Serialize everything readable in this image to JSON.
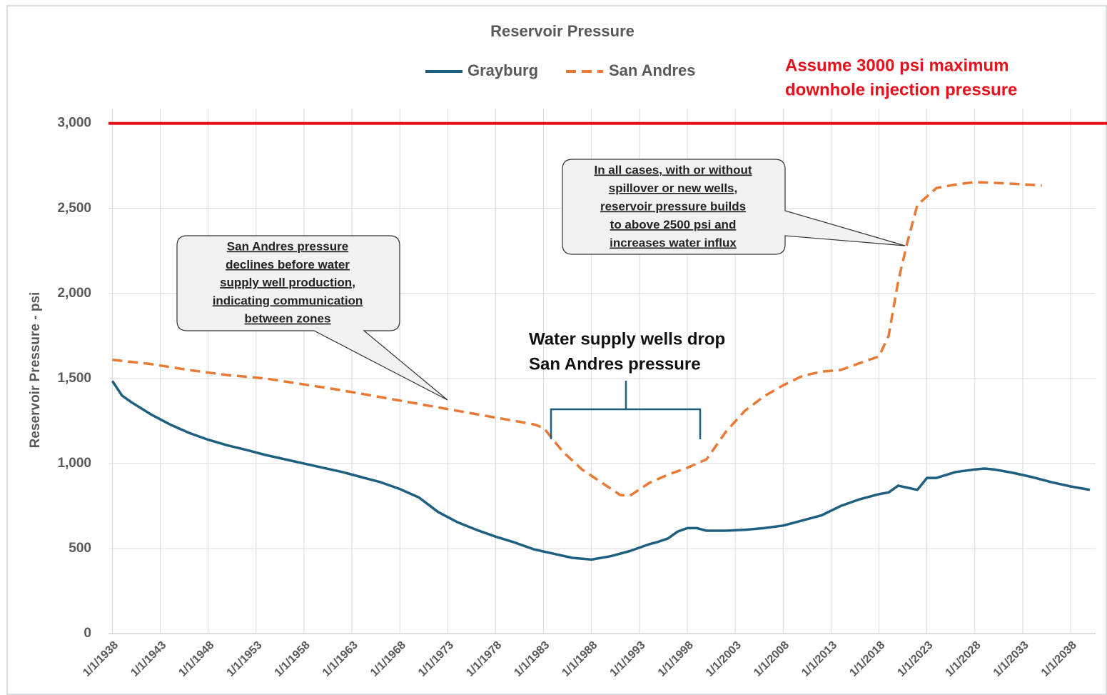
{
  "chart_data": {
    "type": "line",
    "title": "Reservoir Pressure",
    "y_label": "Reservoir Pressure - psi",
    "xlim": [
      1937.6,
      2040.6
    ],
    "ylim": [
      0,
      3150
    ],
    "xticks": [
      {
        "value": 1938,
        "label": "1/1/1938"
      },
      {
        "value": 1943,
        "label": "1/1/1943"
      },
      {
        "value": 1948,
        "label": "1/1/1948"
      },
      {
        "value": 1953,
        "label": "1/1/1953"
      },
      {
        "value": 1958,
        "label": "1/1/1958"
      },
      {
        "value": 1963,
        "label": "1/1/1963"
      },
      {
        "value": 1968,
        "label": "1/1/1968"
      },
      {
        "value": 1973,
        "label": "1/1/1973"
      },
      {
        "value": 1978,
        "label": "1/1/1978"
      },
      {
        "value": 1983,
        "label": "1/1/1983"
      },
      {
        "value": 1988,
        "label": "1/1/1988"
      },
      {
        "value": 1993,
        "label": "1/1/1993"
      },
      {
        "value": 1998,
        "label": "1/1/1998"
      },
      {
        "value": 2003,
        "label": "1/1/2003"
      },
      {
        "value": 2008,
        "label": "1/1/2008"
      },
      {
        "value": 2013,
        "label": "1/1/2013"
      },
      {
        "value": 2018,
        "label": "1/1/2018"
      },
      {
        "value": 2023,
        "label": "1/1/2023"
      },
      {
        "value": 2028,
        "label": "1/1/2028"
      },
      {
        "value": 2033,
        "label": "1/1/2033"
      },
      {
        "value": 2038,
        "label": "1/1/2038"
      }
    ],
    "yticks": [
      0,
      500,
      {
        "value": 1000,
        "label": "1,000"
      },
      {
        "value": 1500,
        "label": "1,500"
      },
      {
        "value": 2000,
        "label": "2,000"
      },
      {
        "value": 2500,
        "label": "2,500"
      },
      {
        "value": 3000,
        "label": "3,000"
      }
    ],
    "grid": true,
    "legend": "top",
    "series": [
      {
        "name": "Grayburg",
        "color": "#1f5f80",
        "dash": "solid",
        "x": [
          1938,
          1939,
          1940,
          1942,
          1944,
          1946,
          1948,
          1950,
          1952,
          1954,
          1956,
          1958,
          1960,
          1962,
          1964,
          1966,
          1968,
          1970,
          1972,
          1974,
          1976,
          1978,
          1980,
          1982,
          1984,
          1986,
          1988,
          1990,
          1992,
          1994,
          1995,
          1996,
          1997,
          1998,
          1999,
          2000,
          2002,
          2004,
          2006,
          2008,
          2010,
          2012,
          2014,
          2016,
          2018,
          2019,
          2020,
          2022,
          2023,
          2024,
          2026,
          2028,
          2029,
          2030,
          2032,
          2034,
          2036,
          2038,
          2040
        ],
        "values": [
          1485,
          1400,
          1360,
          1290,
          1230,
          1180,
          1140,
          1107,
          1080,
          1050,
          1025,
          1000,
          975,
          950,
          920,
          890,
          850,
          800,
          715,
          655,
          610,
          570,
          535,
          495,
          470,
          445,
          435,
          455,
          485,
          525,
          540,
          560,
          600,
          620,
          620,
          605,
          605,
          610,
          620,
          635,
          665,
          695,
          750,
          790,
          820,
          830,
          870,
          845,
          915,
          915,
          950,
          965,
          970,
          965,
          945,
          920,
          890,
          865,
          845
        ]
      },
      {
        "name": "San Andres",
        "color": "#e97a35",
        "dash": "dashed",
        "x": [
          1938,
          1942,
          1946,
          1950,
          1954,
          1958,
          1962,
          1966,
          1970,
          1974,
          1978,
          1982,
          1983,
          1985,
          1987,
          1989,
          1991,
          1992,
          1994,
          1996,
          1998,
          2000,
          2002,
          2004,
          2006,
          2008,
          2010,
          2012,
          2014,
          2016,
          2018,
          2019,
          2020,
          2021,
          2022,
          2024,
          2026,
          2028,
          2030,
          2032,
          2035
        ],
        "values": [
          1610,
          1585,
          1550,
          1520,
          1500,
          1465,
          1430,
          1390,
          1350,
          1310,
          1270,
          1230,
          1210,
          1070,
          965,
          890,
          815,
          810,
          885,
          935,
          975,
          1025,
          1185,
          1310,
          1395,
          1460,
          1515,
          1540,
          1550,
          1590,
          1630,
          1750,
          2070,
          2310,
          2520,
          2620,
          2640,
          2655,
          2650,
          2645,
          2635
        ]
      }
    ],
    "reference_line": {
      "value": 3000,
      "color": "#e8101a",
      "lines": [
        "Assume 3000 psi maximum",
        "downhole injection pressure"
      ]
    },
    "annotations": [
      {
        "lines": [
          "San Andres pressure",
          "declines before water",
          "supply well production,",
          "indicating communication",
          "between zones"
        ]
      },
      {
        "lines": [
          "In all cases, with or without",
          "spillover or new wells,",
          "reservoir pressure builds",
          "to above 2500 psi and",
          "increases water influx"
        ]
      },
      {
        "lines": [
          "Water supply wells drop",
          "San Andres pressure"
        ]
      }
    ]
  }
}
